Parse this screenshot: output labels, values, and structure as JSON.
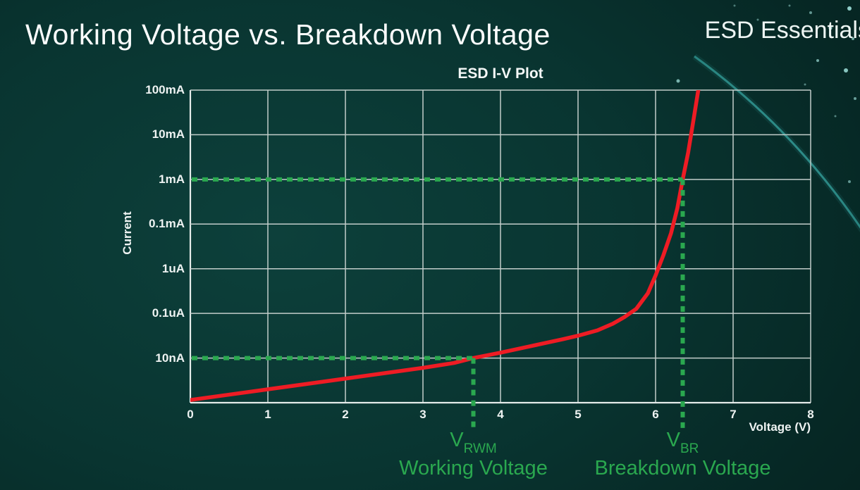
{
  "slide": {
    "title": "Working Voltage vs. Breakdown Voltage",
    "brand": "ESD Essentials"
  },
  "chart_data": {
    "type": "line",
    "title": "ESD I-V Plot",
    "xlabel": "Voltage (V)",
    "ylabel": "Current",
    "xlim": [
      0,
      8
    ],
    "x_ticks": [
      "0",
      "1",
      "2",
      "3",
      "4",
      "5",
      "6",
      "7",
      "8"
    ],
    "y_ticks": [
      "100mA",
      "10mA",
      "1mA",
      "0.1mA",
      "1uA",
      "0.1uA",
      "10nA"
    ],
    "y_axis_note": "logarithmic decades, top-to-bottom; bottom gridline unlabeled",
    "grid": true,
    "series": [
      {
        "name": "ESD I-V curve",
        "color": "#ee1c24",
        "points": [
          [
            0,
            0.06
          ],
          [
            0.5,
            0.18
          ],
          [
            1,
            0.3
          ],
          [
            1.5,
            0.42
          ],
          [
            2,
            0.54
          ],
          [
            2.5,
            0.66
          ],
          [
            3,
            0.78
          ],
          [
            3.4,
            0.89
          ],
          [
            3.65,
            1.0
          ],
          [
            4,
            1.12
          ],
          [
            4.4,
            1.27
          ],
          [
            4.8,
            1.42
          ],
          [
            5,
            1.5
          ],
          [
            5.25,
            1.62
          ],
          [
            5.45,
            1.77
          ],
          [
            5.6,
            1.92
          ],
          [
            5.75,
            2.1
          ],
          [
            5.9,
            2.45
          ],
          [
            6.0,
            2.85
          ],
          [
            6.1,
            3.3
          ],
          [
            6.2,
            3.8
          ],
          [
            6.28,
            4.35
          ],
          [
            6.35,
            5.0
          ],
          [
            6.42,
            5.6
          ],
          [
            6.5,
            6.45
          ],
          [
            6.56,
            7.1
          ]
        ]
      }
    ],
    "markers": [
      {
        "id": "vrwm",
        "symbol": "V",
        "sub": "RWM",
        "caption": "Working Voltage",
        "voltage": 3.65,
        "current": "10nA",
        "row": 1
      },
      {
        "id": "vbr",
        "symbol": "V",
        "sub": "BR",
        "caption": "Breakdown Voltage",
        "voltage": 6.35,
        "current": "1mA",
        "row": 5
      }
    ],
    "colors": {
      "grid": "#c2cdca",
      "axis": "#e4ebe9",
      "curve": "#ee1c24",
      "marker_green": "#2aa84f",
      "text": "#ffffff"
    }
  }
}
